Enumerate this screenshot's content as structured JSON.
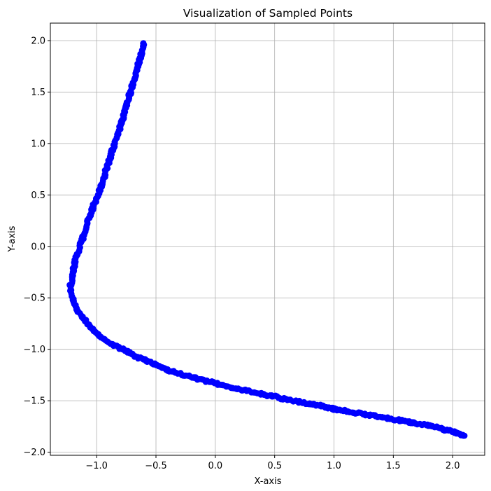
{
  "chart_data": {
    "type": "scatter",
    "title": "Visualization of Sampled Points",
    "xlabel": "X-axis",
    "ylabel": "Y-axis",
    "xlim": [
      -1.39,
      2.27
    ],
    "ylim": [
      -2.03,
      2.17
    ],
    "grid": true,
    "marker_color": "#0000ff",
    "x_ticks": [
      -1.0,
      -0.5,
      0.0,
      0.5,
      1.0,
      1.5,
      2.0
    ],
    "x_tick_labels": [
      "−1.0",
      "−0.5",
      "0.0",
      "0.5",
      "1.0",
      "1.5",
      "2.0"
    ],
    "y_ticks": [
      -2.0,
      -1.5,
      -1.0,
      -0.5,
      0.0,
      0.5,
      1.0,
      1.5,
      2.0
    ],
    "y_tick_labels": [
      "−2.0",
      "−1.5",
      "−1.0",
      "−0.5",
      "0.0",
      "0.5",
      "1.0",
      "1.5",
      "2.0"
    ],
    "series": [
      {
        "x": [
          -0.6,
          -0.63,
          -0.66,
          -0.69,
          -0.72,
          -0.75,
          -0.78,
          -0.81,
          -0.84,
          -0.87,
          -0.9,
          -0.93,
          -0.96,
          -0.99,
          -1.02,
          -1.05,
          -1.08,
          -1.1,
          -1.12,
          -1.14,
          -1.16,
          -1.18,
          -1.19,
          -1.2,
          -1.21,
          -1.21,
          -1.22,
          -1.22,
          -1.21,
          -1.19,
          -1.16,
          -1.12,
          -1.08,
          -1.04,
          -1.0,
          -0.95,
          -0.9,
          -0.85,
          -0.8,
          -0.75,
          -0.7,
          -0.65,
          -0.6,
          -0.55,
          -0.5,
          -0.4,
          -0.3,
          -0.2,
          -0.1,
          0.0,
          0.1,
          0.2,
          0.3,
          0.4,
          0.5,
          0.6,
          0.7,
          0.8,
          0.9,
          1.0,
          1.1,
          1.2,
          1.3,
          1.4,
          1.5,
          1.6,
          1.7,
          1.8,
          1.9,
          2.0,
          2.05,
          2.1
        ],
        "y": [
          1.98,
          1.85,
          1.72,
          1.6,
          1.48,
          1.36,
          1.25,
          1.14,
          1.03,
          0.92,
          0.81,
          0.7,
          0.6,
          0.5,
          0.41,
          0.32,
          0.23,
          0.15,
          0.07,
          0.0,
          -0.07,
          -0.14,
          -0.2,
          -0.26,
          -0.3,
          -0.34,
          -0.38,
          -0.42,
          -0.48,
          -0.55,
          -0.62,
          -0.69,
          -0.75,
          -0.8,
          -0.85,
          -0.89,
          -0.93,
          -0.96,
          -0.99,
          -1.02,
          -1.05,
          -1.08,
          -1.1,
          -1.13,
          -1.15,
          -1.2,
          -1.24,
          -1.27,
          -1.3,
          -1.33,
          -1.36,
          -1.39,
          -1.41,
          -1.44,
          -1.46,
          -1.49,
          -1.51,
          -1.53,
          -1.55,
          -1.58,
          -1.6,
          -1.62,
          -1.64,
          -1.66,
          -1.68,
          -1.7,
          -1.72,
          -1.74,
          -1.77,
          -1.8,
          -1.82,
          -1.84
        ]
      }
    ]
  }
}
